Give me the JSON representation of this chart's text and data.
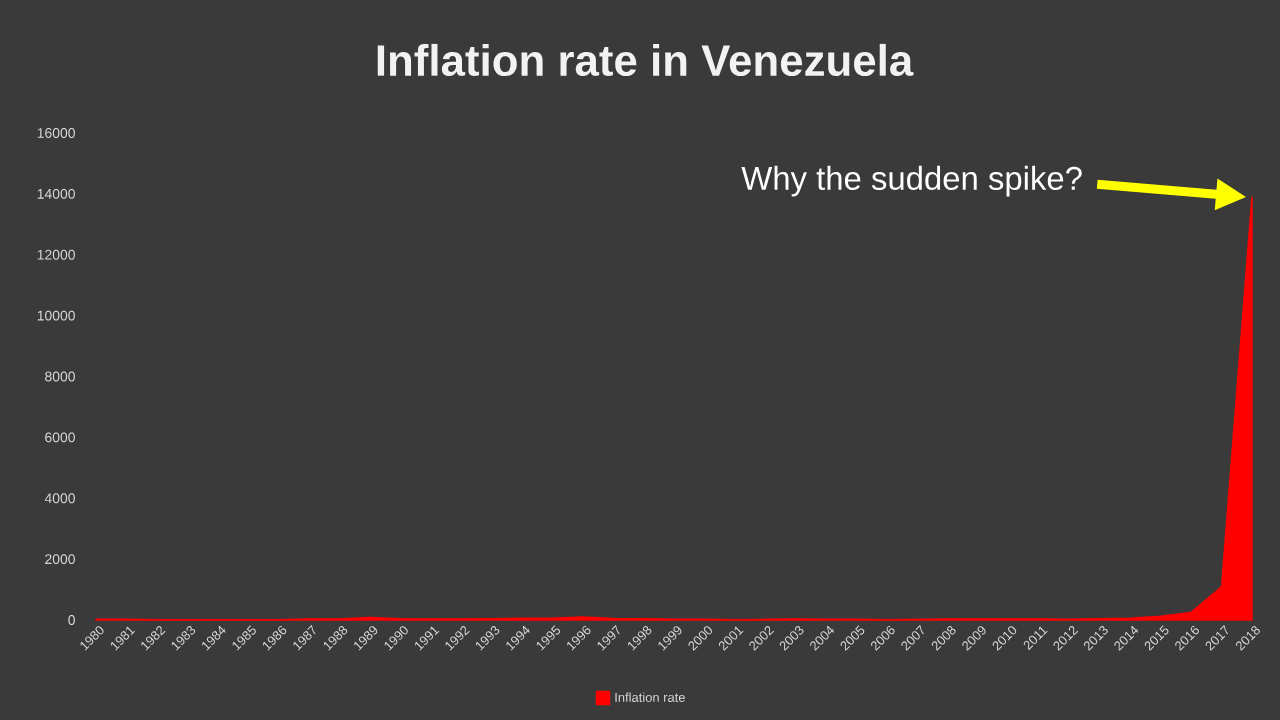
{
  "chart_data": {
    "type": "area",
    "title": "Inflation rate in Venezuela",
    "categories": [
      "1980",
      "1981",
      "1982",
      "1983",
      "1984",
      "1985",
      "1986",
      "1987",
      "1988",
      "1989",
      "1990",
      "1991",
      "1992",
      "1993",
      "1994",
      "1995",
      "1996",
      "1997",
      "1998",
      "1999",
      "2000",
      "2001",
      "2002",
      "2003",
      "2004",
      "2005",
      "2006",
      "2007",
      "2008",
      "2009",
      "2010",
      "2011",
      "2012",
      "2013",
      "2014",
      "2015",
      "2016",
      "2017",
      "2018"
    ],
    "series": [
      {
        "name": "Inflation rate",
        "color": "#ff0000",
        "values": [
          20,
          20,
          10,
          10,
          10,
          10,
          10,
          30,
          30,
          80,
          40,
          30,
          30,
          40,
          60,
          60,
          100,
          50,
          40,
          20,
          20,
          10,
          20,
          30,
          20,
          20,
          10,
          20,
          30,
          30,
          30,
          30,
          20,
          40,
          60,
          120,
          250,
          1090,
          13900
        ]
      }
    ],
    "ylim": [
      0,
      16000
    ],
    "yticks": [
      0,
      2000,
      4000,
      6000,
      8000,
      10000,
      12000,
      14000,
      16000
    ],
    "legend": "bottom",
    "annotations": [
      "Why the sudden spike?"
    ]
  }
}
